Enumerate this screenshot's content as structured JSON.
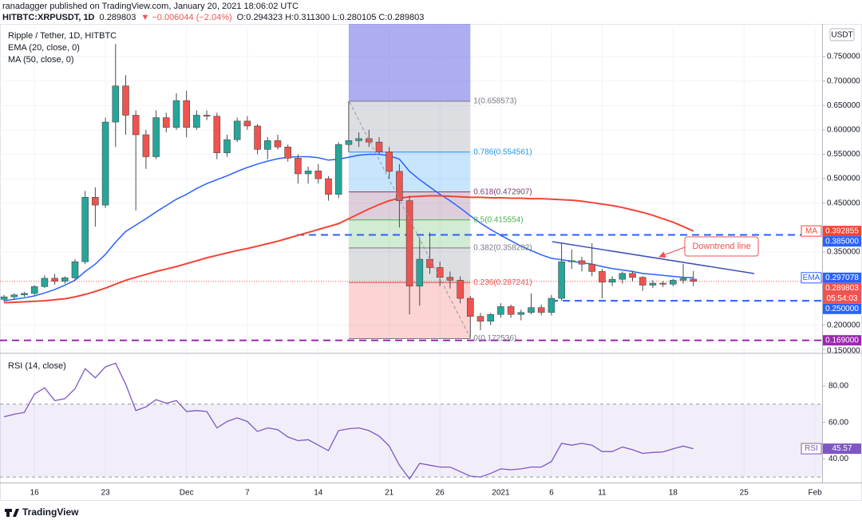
{
  "header": {
    "author_line": "ranadagger published on TradingView.com, January 20, 2021 18:06:02 UTC",
    "symbol": "HITBTC:XRPUSDT, 1D",
    "last": "0.289803",
    "change": "▼ −0.006044 (−2.04%)",
    "ohlc": "O:0.294323 H:0.311300 L:0.280105 C:0.289803"
  },
  "footer": {
    "brand": "TradingView"
  },
  "chart_data": {
    "type": "candlestick",
    "title": "Ripple / Tether, 1D, HITBTC",
    "currency": "USDT",
    "up_color": "#26a69a",
    "down_color": "#ef5350",
    "ohlc": [
      [
        0.253,
        0.262,
        0.248,
        0.258
      ],
      [
        0.258,
        0.265,
        0.252,
        0.262
      ],
      [
        0.262,
        0.268,
        0.258,
        0.265
      ],
      [
        0.265,
        0.282,
        0.262,
        0.279
      ],
      [
        0.279,
        0.302,
        0.276,
        0.296
      ],
      [
        0.296,
        0.305,
        0.283,
        0.29
      ],
      [
        0.29,
        0.3,
        0.285,
        0.297
      ],
      [
        0.297,
        0.335,
        0.293,
        0.33
      ],
      [
        0.33,
        0.475,
        0.325,
        0.462
      ],
      [
        0.462,
        0.482,
        0.402,
        0.446
      ],
      [
        0.446,
        0.625,
        0.44,
        0.616
      ],
      [
        0.616,
        0.776,
        0.565,
        0.69
      ],
      [
        0.69,
        0.712,
        0.59,
        0.63
      ],
      [
        0.63,
        0.64,
        0.435,
        0.59
      ],
      [
        0.59,
        0.6,
        0.52,
        0.545
      ],
      [
        0.545,
        0.64,
        0.54,
        0.625
      ],
      [
        0.625,
        0.635,
        0.595,
        0.605
      ],
      [
        0.605,
        0.675,
        0.6,
        0.66
      ],
      [
        0.66,
        0.68,
        0.585,
        0.605
      ],
      [
        0.605,
        0.64,
        0.6,
        0.63
      ],
      [
        0.63,
        0.64,
        0.62,
        0.628
      ],
      [
        0.628,
        0.635,
        0.54,
        0.553
      ],
      [
        0.553,
        0.59,
        0.545,
        0.58
      ],
      [
        0.58,
        0.625,
        0.575,
        0.618
      ],
      [
        0.618,
        0.628,
        0.6,
        0.608
      ],
      [
        0.608,
        0.612,
        0.55,
        0.56
      ],
      [
        0.56,
        0.585,
        0.54,
        0.578
      ],
      [
        0.578,
        0.59,
        0.56,
        0.565
      ],
      [
        0.565,
        0.57,
        0.535,
        0.542
      ],
      [
        0.542,
        0.55,
        0.49,
        0.51
      ],
      [
        0.51,
        0.525,
        0.49,
        0.516
      ],
      [
        0.516,
        0.53,
        0.49,
        0.5
      ],
      [
        0.5,
        0.505,
        0.455,
        0.468
      ],
      [
        0.468,
        0.575,
        0.46,
        0.57
      ],
      [
        0.57,
        0.658573,
        0.555,
        0.578
      ],
      [
        0.578,
        0.595,
        0.565,
        0.582
      ],
      [
        0.582,
        0.6,
        0.565,
        0.575
      ],
      [
        0.575,
        0.585,
        0.55,
        0.555
      ],
      [
        0.555,
        0.565,
        0.5,
        0.515
      ],
      [
        0.515,
        0.53,
        0.4,
        0.455
      ],
      [
        0.455,
        0.465,
        0.222,
        0.28
      ],
      [
        0.28,
        0.38,
        0.24,
        0.335
      ],
      [
        0.335,
        0.39,
        0.305,
        0.318
      ],
      [
        0.318,
        0.33,
        0.28,
        0.298
      ],
      [
        0.298,
        0.31,
        0.275,
        0.292
      ],
      [
        0.292,
        0.3,
        0.245,
        0.255
      ],
      [
        0.255,
        0.26,
        0.172536,
        0.218
      ],
      [
        0.218,
        0.225,
        0.19,
        0.208
      ],
      [
        0.208,
        0.225,
        0.2,
        0.222
      ],
      [
        0.222,
        0.245,
        0.215,
        0.238
      ],
      [
        0.238,
        0.242,
        0.215,
        0.222
      ],
      [
        0.222,
        0.232,
        0.21,
        0.226
      ],
      [
        0.226,
        0.265,
        0.222,
        0.236
      ],
      [
        0.236,
        0.242,
        0.22,
        0.226
      ],
      [
        0.226,
        0.262,
        0.22,
        0.255
      ],
      [
        0.255,
        0.368,
        0.25,
        0.33
      ],
      [
        0.33,
        0.355,
        0.315,
        0.332
      ],
      [
        0.332,
        0.34,
        0.31,
        0.325
      ],
      [
        0.325,
        0.368,
        0.3,
        0.31
      ],
      [
        0.31,
        0.315,
        0.255,
        0.288
      ],
      [
        0.288,
        0.3,
        0.28,
        0.294
      ],
      [
        0.294,
        0.31,
        0.285,
        0.306
      ],
      [
        0.306,
        0.31,
        0.29,
        0.298
      ],
      [
        0.298,
        0.3,
        0.27,
        0.282
      ],
      [
        0.282,
        0.292,
        0.276,
        0.286
      ],
      [
        0.286,
        0.29,
        0.278,
        0.284
      ],
      [
        0.284,
        0.295,
        0.28,
        0.292
      ],
      [
        0.292,
        0.325,
        0.285,
        0.295847
      ],
      [
        0.294323,
        0.3113,
        0.280105,
        0.289803
      ]
    ],
    "xlim": [
      -0.4,
      80.7
    ],
    "xticks": [
      {
        "value": 3,
        "label": "16"
      },
      {
        "value": 10,
        "label": "23"
      },
      {
        "value": 18,
        "label": "Dec"
      },
      {
        "value": 24,
        "label": "7"
      },
      {
        "value": 31,
        "label": "14"
      },
      {
        "value": 38,
        "label": "21"
      },
      {
        "value": 43,
        "label": "26"
      },
      {
        "value": 49,
        "label": "2021"
      },
      {
        "value": 54,
        "label": "6"
      },
      {
        "value": 59,
        "label": "11"
      },
      {
        "value": 66,
        "label": "18"
      },
      {
        "value": 73,
        "label": "25"
      },
      {
        "value": 80,
        "label": "Feb"
      }
    ],
    "ylim": [
      0.144,
      0.817
    ],
    "yticks": [
      {
        "value": 0.15,
        "label": "0.150000"
      },
      {
        "value": 0.2,
        "label": "0.200000"
      },
      {
        "value": 0.35,
        "label": "0.350000"
      },
      {
        "value": 0.45,
        "label": "0.450000"
      },
      {
        "value": 0.5,
        "label": "0.500000"
      },
      {
        "value": 0.55,
        "label": "0.550000"
      },
      {
        "value": 0.6,
        "label": "0.600000"
      },
      {
        "value": 0.65,
        "label": "0.650000"
      },
      {
        "value": 0.7,
        "label": "0.700000"
      },
      {
        "value": 0.75,
        "label": "0.750000"
      }
    ],
    "grid": true,
    "overlays": [
      {
        "name": "EMA",
        "legend": "EMA (20, close, 0)",
        "color": "#2962ff",
        "last_label": "0.297078",
        "values": [
          0.25,
          0.253,
          0.256,
          0.26,
          0.266,
          0.273,
          0.282,
          0.292,
          0.31,
          0.325,
          0.345,
          0.37,
          0.392,
          0.405,
          0.418,
          0.432,
          0.445,
          0.458,
          0.468,
          0.48,
          0.49,
          0.498,
          0.506,
          0.515,
          0.523,
          0.53,
          0.536,
          0.541,
          0.544,
          0.545,
          0.545,
          0.543,
          0.538,
          0.54,
          0.544,
          0.548,
          0.55,
          0.55,
          0.547,
          0.54,
          0.515,
          0.498,
          0.483,
          0.468,
          0.455,
          0.44,
          0.424,
          0.409,
          0.396,
          0.384,
          0.373,
          0.362,
          0.353,
          0.344,
          0.337,
          0.334,
          0.331,
          0.328,
          0.325,
          0.32,
          0.316,
          0.313,
          0.31,
          0.306,
          0.304,
          0.302,
          0.3,
          0.298,
          0.297078
        ]
      },
      {
        "name": "MA",
        "legend": "MA (50, close, 0)",
        "color": "#f44336",
        "last_label": "0.392855",
        "values": [
          0.246,
          0.247,
          0.248,
          0.249,
          0.25,
          0.252,
          0.254,
          0.258,
          0.263,
          0.269,
          0.276,
          0.284,
          0.292,
          0.298,
          0.304,
          0.31,
          0.315,
          0.32,
          0.326,
          0.332,
          0.338,
          0.343,
          0.348,
          0.353,
          0.357,
          0.362,
          0.367,
          0.372,
          0.378,
          0.384,
          0.39,
          0.396,
          0.402,
          0.408,
          0.418,
          0.428,
          0.438,
          0.447,
          0.455,
          0.46,
          0.463,
          0.464,
          0.465,
          0.465,
          0.464,
          0.463,
          0.462,
          0.462,
          0.461,
          0.461,
          0.46,
          0.46,
          0.459,
          0.459,
          0.458,
          0.457,
          0.456,
          0.454,
          0.451,
          0.448,
          0.445,
          0.441,
          0.436,
          0.431,
          0.425,
          0.418,
          0.411,
          0.402,
          0.392855
        ]
      }
    ],
    "price_line": {
      "value": 0.289803,
      "label": "0.289803",
      "countdown": "05:54:03",
      "color": "#ef5350"
    },
    "levels": [
      {
        "value": 0.385,
        "label": "0.385000",
        "color": "#2962ff"
      },
      {
        "value": 0.25,
        "label": "0.250000",
        "color": "#2962ff"
      },
      {
        "value": 0.169,
        "label": "0.169000",
        "color": "#9c27b0"
      }
    ],
    "fib": [
      {
        "value": 0.658573,
        "label": "1(0.658573)",
        "color": "#787b86"
      },
      {
        "value": 0.554561,
        "label": "0.786(0.554561)",
        "color": "#2196f3"
      },
      {
        "value": 0.472907,
        "label": "0.618(0.472907)",
        "color": "#7a3b6e"
      },
      {
        "value": 0.415554,
        "label": "0.5(0.415554)",
        "color": "#4caf50"
      },
      {
        "value": 0.358202,
        "label": "0.382(0.358202)",
        "color": "#787b86"
      },
      {
        "value": 0.287241,
        "label": "0.236(0.287241)",
        "color": "#ef5350"
      },
      {
        "value": 0.172536,
        "label": "0(0.172536)",
        "color": "#787b86"
      }
    ],
    "annotation": "Downtrend line",
    "rsi": {
      "title": "RSI (14, close)",
      "name": "RSI",
      "color": "#7e57c2",
      "last_label": "45.57",
      "ylim": [
        27,
        97.5
      ],
      "yticks": [
        {
          "value": 40,
          "label": "40.00"
        },
        {
          "value": 60,
          "label": "60.00"
        },
        {
          "value": 80,
          "label": "80.00"
        }
      ],
      "band": [
        30,
        70
      ],
      "values": [
        63.1,
        64.5,
        65.5,
        75.5,
        79.0,
        72.0,
        73.0,
        78.5,
        89.5,
        84.5,
        90.5,
        92.5,
        81.0,
        66.5,
        68.5,
        72.5,
        70.5,
        72.0,
        66.0,
        66.5,
        66.0,
        57.0,
        60.5,
        62.5,
        60.5,
        55.0,
        57.0,
        56.0,
        52.0,
        50.0,
        50.5,
        47.5,
        44.5,
        55.5,
        56.5,
        57.0,
        55.5,
        52.5,
        47.0,
        36.5,
        29.0,
        37.5,
        36.5,
        35.5,
        35.5,
        33.0,
        30.5,
        30.0,
        32.0,
        34.5,
        34.0,
        34.5,
        35.5,
        35.5,
        38.5,
        48.5,
        47.5,
        48.5,
        47.5,
        44.0,
        44.0,
        46.5,
        45.0,
        43.0,
        43.5,
        43.8,
        45.5,
        47.0,
        45.57
      ]
    }
  }
}
